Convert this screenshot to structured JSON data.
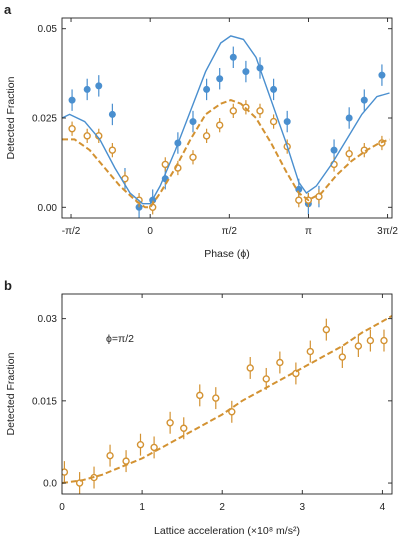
{
  "chart_data": [
    {
      "panel": "a",
      "type": "scatter",
      "xlabel": "Phase (ϕ)",
      "ylabel": "Detected Fraction",
      "xlim": [
        -1.75,
        4.8
      ],
      "ylim": [
        -0.003,
        0.053
      ],
      "xticks": [
        -1.5708,
        0,
        1.5708,
        3.1416,
        4.7124
      ],
      "xtick_labels": [
        "-π/2",
        "0",
        "π/2",
        "π",
        "3π/2"
      ],
      "yticks": [
        0,
        0.025,
        0.05
      ],
      "ytick_labels": [
        "0.00",
        "0.025",
        "0.05"
      ],
      "colors": {
        "blue": "#4a8fcf",
        "orange": "#d39232"
      },
      "series": [
        {
          "style": "points-errorbars",
          "color": "blue",
          "marker": "filled-circle",
          "x": [
            -1.55,
            -1.25,
            -1.02,
            -0.75,
            -0.5,
            -0.22,
            0.05,
            0.3,
            0.55,
            0.85,
            1.12,
            1.38,
            1.65,
            1.9,
            2.18,
            2.45,
            2.72,
            2.95,
            3.14,
            3.35,
            3.65,
            3.95,
            4.25,
            4.6
          ],
          "y": [
            0.03,
            0.033,
            0.034,
            0.026,
            0.008,
            0.0,
            0.002,
            0.008,
            0.018,
            0.024,
            0.033,
            0.036,
            0.042,
            0.038,
            0.039,
            0.033,
            0.024,
            0.005,
            0.001,
            0.003,
            0.016,
            0.025,
            0.03,
            0.037
          ],
          "err": [
            0.003,
            0.003,
            0.003,
            0.003,
            0.003,
            0.003,
            0.003,
            0.003,
            0.003,
            0.003,
            0.003,
            0.003,
            0.003,
            0.003,
            0.003,
            0.003,
            0.003,
            0.003,
            0.003,
            0.003,
            0.003,
            0.003,
            0.003,
            0.003
          ]
        },
        {
          "style": "points-errorbars",
          "color": "orange",
          "marker": "open-circle",
          "x": [
            -1.55,
            -1.25,
            -1.02,
            -0.75,
            -0.5,
            -0.22,
            0.05,
            0.3,
            0.55,
            0.85,
            1.12,
            1.38,
            1.65,
            1.9,
            2.18,
            2.45,
            2.72,
            2.95,
            3.14,
            3.35,
            3.65,
            3.95,
            4.25,
            4.6
          ],
          "y": [
            0.022,
            0.02,
            0.02,
            0.016,
            0.008,
            0.002,
            0.0,
            0.012,
            0.011,
            0.014,
            0.02,
            0.023,
            0.027,
            0.028,
            0.027,
            0.024,
            0.017,
            0.002,
            0.002,
            0.003,
            0.012,
            0.015,
            0.016,
            0.018
          ],
          "err": [
            0.002,
            0.002,
            0.002,
            0.002,
            0.002,
            0.002,
            0.002,
            0.002,
            0.002,
            0.002,
            0.002,
            0.002,
            0.002,
            0.002,
            0.002,
            0.002,
            0.002,
            0.002,
            0.002,
            0.002,
            0.002,
            0.002,
            0.002,
            0.002
          ]
        },
        {
          "style": "solid-line",
          "color": "blue",
          "x": [
            -1.75,
            -1.6,
            -1.3,
            -1.0,
            -0.7,
            -0.4,
            -0.15,
            0.0,
            0.2,
            0.5,
            0.8,
            1.1,
            1.4,
            1.6,
            1.85,
            2.1,
            2.4,
            2.7,
            2.95,
            3.1,
            3.3,
            3.6,
            3.9,
            4.2,
            4.5,
            4.75
          ],
          "y": [
            0.025,
            0.026,
            0.024,
            0.019,
            0.011,
            0.004,
            0.001,
            0.001,
            0.006,
            0.016,
            0.027,
            0.038,
            0.046,
            0.048,
            0.047,
            0.042,
            0.03,
            0.018,
            0.007,
            0.004,
            0.006,
            0.012,
            0.019,
            0.026,
            0.031,
            0.032
          ]
        },
        {
          "style": "dashed-line",
          "color": "orange",
          "x": [
            -1.75,
            -1.5,
            -1.2,
            -0.9,
            -0.6,
            -0.3,
            -0.1,
            0.0,
            0.2,
            0.5,
            0.8,
            1.1,
            1.4,
            1.6,
            1.8,
            2.1,
            2.4,
            2.7,
            2.95,
            3.14,
            3.4,
            3.7,
            4.0,
            4.3,
            4.55,
            4.75
          ],
          "y": [
            0.019,
            0.019,
            0.016,
            0.011,
            0.006,
            0.002,
            0.0,
            0.0,
            0.004,
            0.011,
            0.019,
            0.026,
            0.029,
            0.03,
            0.029,
            0.025,
            0.018,
            0.01,
            0.004,
            0.002,
            0.004,
            0.009,
            0.013,
            0.016,
            0.018,
            0.019
          ]
        }
      ]
    },
    {
      "panel": "b",
      "type": "scatter",
      "xlabel": "Lattice acceleration (×10⁸ m/s²)",
      "ylabel": "Detected Fraction",
      "annotation": "ϕ=π/2",
      "xlim": [
        0,
        4.12
      ],
      "ylim": [
        -0.002,
        0.0345
      ],
      "xticks": [
        0,
        1,
        2,
        3,
        4
      ],
      "xtick_labels": [
        "0",
        "1",
        "2",
        "3",
        "4"
      ],
      "yticks": [
        0,
        0.015,
        0.03
      ],
      "ytick_labels": [
        "0.0",
        "0.015",
        "0.03"
      ],
      "colors": {
        "orange": "#d39232"
      },
      "series": [
        {
          "style": "points-errorbars",
          "color": "orange",
          "marker": "open-circle",
          "x": [
            0.03,
            0.22,
            0.4,
            0.6,
            0.8,
            0.98,
            1.15,
            1.35,
            1.52,
            1.72,
            1.92,
            2.12,
            2.35,
            2.55,
            2.72,
            2.92,
            3.1,
            3.3,
            3.5,
            3.7,
            3.85,
            4.02
          ],
          "y": [
            0.002,
            0.0,
            0.001,
            0.005,
            0.004,
            0.007,
            0.0065,
            0.011,
            0.01,
            0.016,
            0.0155,
            0.013,
            0.021,
            0.019,
            0.022,
            0.02,
            0.024,
            0.028,
            0.023,
            0.025,
            0.026,
            0.026
          ],
          "err": [
            0.002,
            0.002,
            0.002,
            0.002,
            0.002,
            0.002,
            0.002,
            0.002,
            0.002,
            0.002,
            0.002,
            0.002,
            0.002,
            0.002,
            0.002,
            0.002,
            0.002,
            0.002,
            0.002,
            0.002,
            0.002,
            0.002
          ]
        },
        {
          "style": "dashed-line",
          "color": "orange",
          "x": [
            0,
            0.25,
            0.5,
            0.75,
            1.0,
            1.25,
            1.5,
            1.75,
            2.0,
            2.25,
            2.5,
            2.75,
            3.0,
            3.25,
            3.5,
            3.75,
            4.0,
            4.12
          ],
          "y": [
            0.0,
            0.0005,
            0.0015,
            0.003,
            0.0045,
            0.0065,
            0.0085,
            0.0105,
            0.0125,
            0.015,
            0.017,
            0.019,
            0.021,
            0.023,
            0.025,
            0.0275,
            0.0295,
            0.0305
          ]
        }
      ]
    }
  ]
}
